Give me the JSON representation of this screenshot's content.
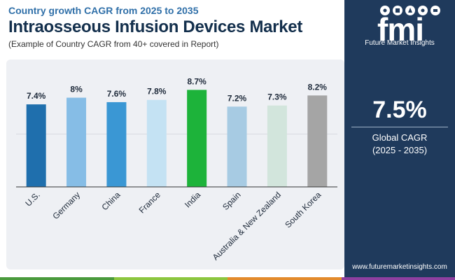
{
  "header": {
    "subtitle": "Country growth CAGR from 2025 to 2035",
    "title": "Intraosseous Infusion Devices Market",
    "note": "(Example of Country CAGR from 40+ covered in Report)"
  },
  "side": {
    "brand": "Future Market Insights",
    "cagr_value": "7.5%",
    "cagr_label": "Global CAGR",
    "cagr_period": "(2025 - 2035)",
    "website": "www.futuremarketinsights.com"
  },
  "colors": {
    "side_bg": "#1f3a5c",
    "strip": [
      "#4a9a3c",
      "#8cc63f",
      "#e38b2c",
      "#8e3fa0"
    ]
  },
  "chart_data": {
    "type": "bar",
    "categories": [
      "U.S.",
      "Germany",
      "China",
      "France",
      "India",
      "Spain",
      "Australia & New Zealand",
      "South Korea"
    ],
    "values": [
      7.4,
      8,
      7.6,
      7.8,
      8.7,
      7.2,
      7.3,
      8.2
    ],
    "labels": [
      "7.4%",
      "8%",
      "7.6%",
      "7.8%",
      "8.7%",
      "7.2%",
      "7.3%",
      "8.2%"
    ],
    "colors": [
      "#1f6fad",
      "#86bde6",
      "#3a97d4",
      "#c4e2f3",
      "#1db33a",
      "#a7cbe3",
      "#d2e5dc",
      "#a5a5a5"
    ],
    "ylim": [
      0,
      10
    ],
    "grid": true
  }
}
